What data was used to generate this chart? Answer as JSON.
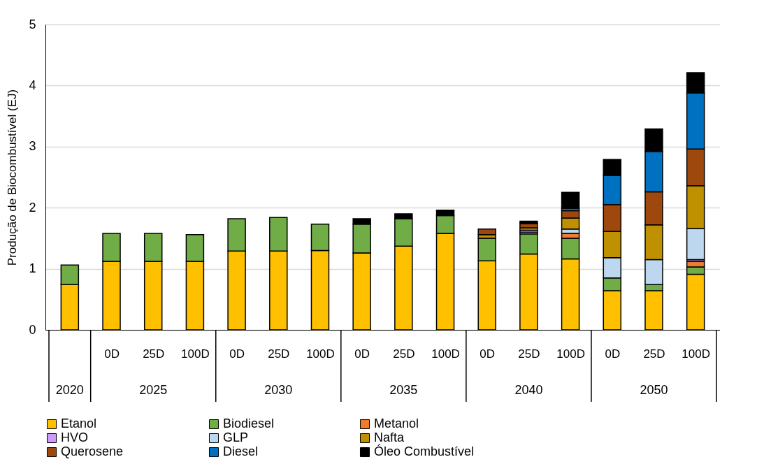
{
  "chart_data": {
    "type": "bar",
    "stacked": true,
    "ylabel": "Produção de Biocombustível (EJ)",
    "categories": [
      null,
      "0D",
      "25D",
      "100D",
      "0D",
      "25D",
      "100D",
      "0D",
      "25D",
      "100D",
      "0D",
      "25D",
      "100D",
      "0D",
      "25D",
      "100D"
    ],
    "annotations": [
      "2020",
      "2025",
      "2030",
      "2035",
      "2040",
      "2050"
    ],
    "ylim": [
      0,
      5
    ],
    "yticks": [
      0,
      1,
      2,
      3,
      4,
      5
    ],
    "grid": "y",
    "legend": "bottom",
    "series": [
      {
        "name": "Etanol",
        "color": "#ffc000",
        "values": [
          0.74,
          1.12,
          1.12,
          1.12,
          1.29,
          1.29,
          1.3,
          1.26,
          1.37,
          1.58,
          1.13,
          1.24,
          1.16,
          0.64,
          0.64,
          0.91
        ]
      },
      {
        "name": "Biodiesel",
        "color": "#70ad47",
        "values": [
          0.32,
          0.46,
          0.46,
          0.44,
          0.53,
          0.55,
          0.43,
          0.47,
          0.45,
          0.29,
          0.37,
          0.33,
          0.34,
          0.21,
          0.1,
          0.12
        ]
      },
      {
        "name": "Metanol",
        "color": "#ed7d31",
        "values": [
          null,
          null,
          null,
          null,
          null,
          null,
          null,
          null,
          null,
          null,
          null,
          null,
          0.08,
          null,
          null,
          0.09
        ]
      },
      {
        "name": "HVO",
        "color": "#cc99ff",
        "values": [
          null,
          null,
          null,
          null,
          null,
          null,
          null,
          null,
          null,
          null,
          null,
          0.03,
          null,
          null,
          null,
          0.03
        ]
      },
      {
        "name": "GLP",
        "color": "#bdd7ee",
        "values": [
          null,
          null,
          null,
          null,
          null,
          null,
          null,
          null,
          null,
          null,
          null,
          0.03,
          0.07,
          0.33,
          0.41,
          0.51
        ]
      },
      {
        "name": "Nafta",
        "color": "#bf9000",
        "values": [
          null,
          null,
          null,
          null,
          null,
          null,
          null,
          null,
          null,
          null,
          0.06,
          0.04,
          0.18,
          0.43,
          0.57,
          0.7
        ]
      },
      {
        "name": "Querosene",
        "color": "#9e480e",
        "values": [
          null,
          null,
          null,
          null,
          null,
          null,
          null,
          null,
          null,
          null,
          0.09,
          0.07,
          0.12,
          0.44,
          0.54,
          0.6
        ]
      },
      {
        "name": "Diesel",
        "color": "#0070c0",
        "values": [
          null,
          null,
          null,
          null,
          null,
          null,
          null,
          null,
          null,
          null,
          null,
          null,
          0.04,
          0.48,
          0.66,
          0.92
        ]
      },
      {
        "name": "Óleo Combustível",
        "color": "#000000",
        "values": [
          null,
          null,
          null,
          null,
          null,
          null,
          null,
          0.09,
          0.08,
          0.09,
          null,
          0.04,
          0.26,
          0.26,
          0.37,
          0.33
        ]
      }
    ]
  }
}
